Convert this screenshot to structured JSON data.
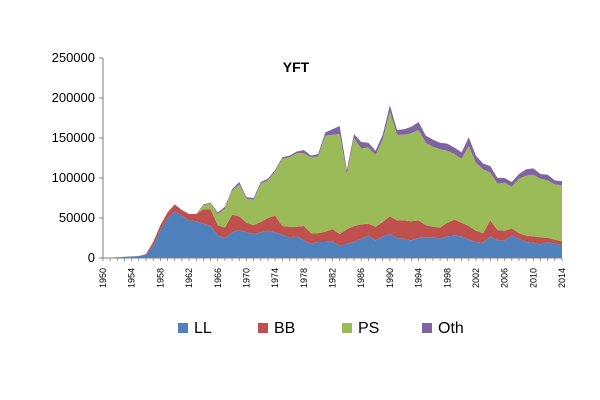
{
  "chart_data": {
    "type": "area",
    "stacked": true,
    "title": "YFT",
    "xlabel": "",
    "ylabel": "",
    "xlim": [
      1950,
      2014
    ],
    "ylim": [
      0,
      250000
    ],
    "yticks": [
      0,
      50000,
      100000,
      150000,
      200000,
      250000
    ],
    "xticks": [
      1950,
      1954,
      1958,
      1962,
      1966,
      1970,
      1974,
      1978,
      1982,
      1986,
      1990,
      1994,
      1998,
      2002,
      2006,
      2010,
      2014
    ],
    "grid": false,
    "legend_position": "bottom",
    "x": [
      1950,
      1951,
      1952,
      1953,
      1954,
      1955,
      1956,
      1957,
      1958,
      1959,
      1960,
      1961,
      1962,
      1963,
      1964,
      1965,
      1966,
      1967,
      1968,
      1969,
      1970,
      1971,
      1972,
      1973,
      1974,
      1975,
      1976,
      1977,
      1978,
      1979,
      1980,
      1981,
      1982,
      1983,
      1984,
      1985,
      1986,
      1987,
      1988,
      1989,
      1990,
      1991,
      1992,
      1993,
      1994,
      1995,
      1996,
      1997,
      1998,
      1999,
      2000,
      2001,
      2002,
      2003,
      2004,
      2005,
      2006,
      2007,
      2008,
      2009,
      2010,
      2011,
      2012,
      2013,
      2014
    ],
    "series": [
      {
        "name": "LL",
        "color": "#4F81BD",
        "values": [
          0,
          500,
          1000,
          1500,
          2000,
          2500,
          4000,
          15000,
          35000,
          50000,
          58000,
          53000,
          47000,
          46000,
          43000,
          40000,
          28000,
          25000,
          32000,
          35000,
          32000,
          30000,
          32000,
          34000,
          32000,
          29000,
          26000,
          27000,
          22000,
          18000,
          20000,
          20000,
          21000,
          15000,
          18000,
          20000,
          24000,
          28000,
          22000,
          27000,
          30000,
          25000,
          24000,
          22000,
          25000,
          26000,
          26000,
          24000,
          27000,
          28000,
          27000,
          23000,
          20000,
          19000,
          27000,
          22000,
          22000,
          28000,
          24000,
          20000,
          19000,
          17000,
          20000,
          18000,
          16000
        ]
      },
      {
        "name": "BB",
        "color": "#C0504D",
        "values": [
          0,
          0,
          0,
          0,
          0,
          0,
          1000,
          5000,
          6000,
          7000,
          9000,
          7000,
          8000,
          9000,
          18000,
          21000,
          13000,
          13000,
          22000,
          17000,
          12000,
          11000,
          13000,
          16000,
          21000,
          11000,
          13000,
          12000,
          18000,
          13000,
          11000,
          13000,
          15000,
          15000,
          18000,
          20000,
          18000,
          15000,
          17000,
          18000,
          22000,
          22000,
          23000,
          24000,
          22000,
          15000,
          13000,
          14000,
          17000,
          20000,
          17000,
          17000,
          14000,
          12000,
          20000,
          13000,
          12000,
          9000,
          7000,
          8000,
          8000,
          9000,
          5000,
          5000,
          5000
        ]
      },
      {
        "name": "PS",
        "color": "#9BBB59",
        "values": [
          0,
          0,
          0,
          0,
          0,
          0,
          0,
          0,
          0,
          0,
          0,
          0,
          0,
          0,
          5000,
          7000,
          14000,
          24000,
          30000,
          40000,
          30000,
          32000,
          48000,
          47000,
          55000,
          84000,
          87000,
          92000,
          91000,
          95000,
          96000,
          120000,
          118000,
          125000,
          70000,
          110000,
          95000,
          95000,
          90000,
          103000,
          131000,
          107000,
          107000,
          110000,
          113000,
          103000,
          100000,
          98000,
          90000,
          82000,
          80000,
          100000,
          85000,
          80000,
          60000,
          58000,
          60000,
          52000,
          68000,
          75000,
          77000,
          73000,
          72000,
          69000,
          70000
        ]
      },
      {
        "name": "Oth",
        "color": "#8064A2",
        "values": [
          0,
          0,
          0,
          0,
          0,
          0,
          0,
          0,
          0,
          0,
          0,
          0,
          0,
          0,
          1000,
          1000,
          2000,
          2000,
          2000,
          3000,
          2000,
          2000,
          2000,
          2000,
          2000,
          2000,
          2000,
          2000,
          4000,
          2000,
          3000,
          4000,
          7000,
          10000,
          4000,
          5000,
          8000,
          6000,
          5000,
          6000,
          8000,
          6000,
          7000,
          8000,
          10000,
          9000,
          9000,
          8000,
          9000,
          8000,
          8000,
          11000,
          9000,
          7000,
          8000,
          7000,
          6000,
          6000,
          6000,
          8000,
          8000,
          6000,
          7000,
          5000,
          5000
        ]
      }
    ]
  }
}
